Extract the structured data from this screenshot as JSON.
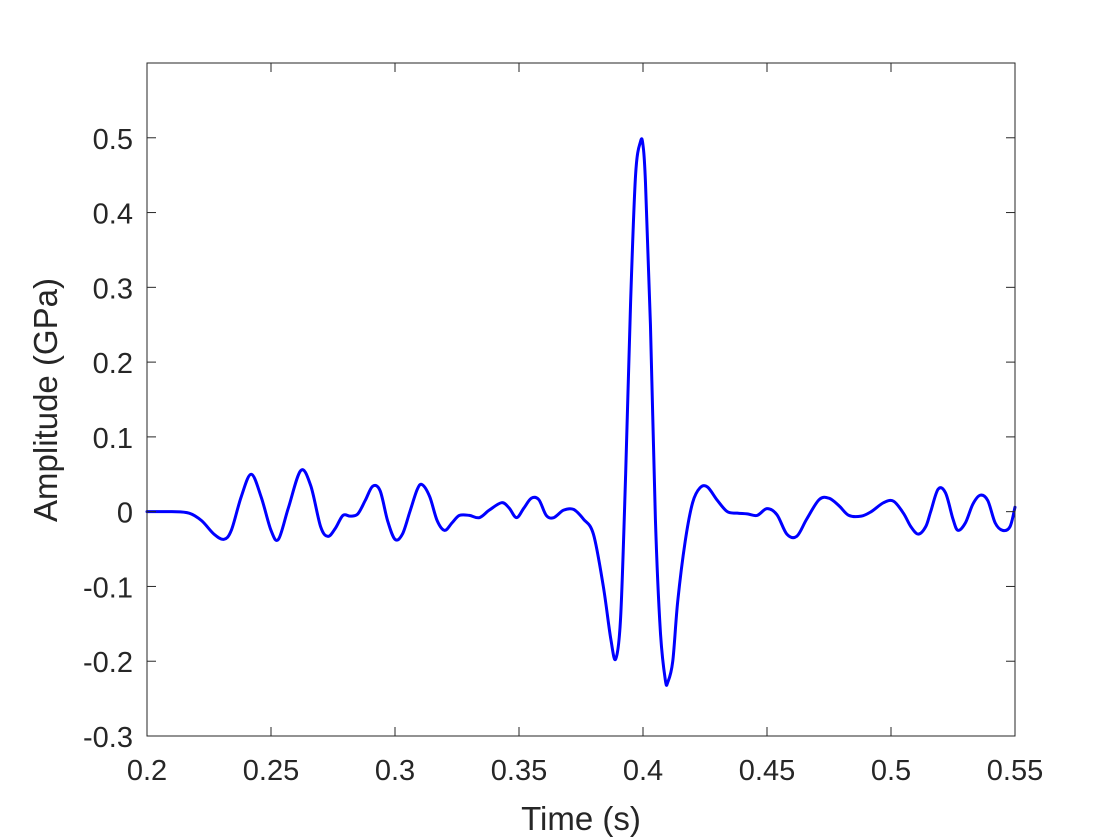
{
  "chart_data": {
    "type": "line",
    "title": "",
    "xlabel": "Time (s)",
    "ylabel": "Amplitude (GPa)",
    "xlim": [
      0.2,
      0.55
    ],
    "ylim": [
      -0.3,
      0.6
    ],
    "xticks": [
      0.2,
      0.25,
      0.3,
      0.35,
      0.4,
      0.45,
      0.5,
      0.55
    ],
    "xtick_labels": [
      "0.2",
      "0.25",
      "0.3",
      "0.35",
      "0.4",
      "0.45",
      "0.5",
      "0.55"
    ],
    "yticks": [
      -0.3,
      -0.2,
      -0.1,
      0,
      0.1,
      0.2,
      0.3,
      0.4,
      0.5
    ],
    "ytick_labels": [
      "-0.3",
      "-0.2",
      "-0.1",
      "0",
      "0.1",
      "0.2",
      "0.3",
      "0.4",
      "0.5"
    ],
    "grid": false,
    "box": true,
    "series": [
      {
        "color": "#0000ff",
        "x": [
          0.2,
          0.21,
          0.217,
          0.222,
          0.227,
          0.231,
          0.234,
          0.238,
          0.242,
          0.246,
          0.25,
          0.253,
          0.257,
          0.262,
          0.266,
          0.27,
          0.273,
          0.276,
          0.279,
          0.282,
          0.285,
          0.288,
          0.291,
          0.294,
          0.297,
          0.3,
          0.303,
          0.306,
          0.309,
          0.311,
          0.314,
          0.317,
          0.32,
          0.323,
          0.326,
          0.33,
          0.334,
          0.338,
          0.343,
          0.346,
          0.349,
          0.352,
          0.355,
          0.358,
          0.361,
          0.364,
          0.368,
          0.372,
          0.376,
          0.38,
          0.384,
          0.387,
          0.389,
          0.391,
          0.393,
          0.395,
          0.397,
          0.399,
          0.4,
          0.401,
          0.403,
          0.405,
          0.407,
          0.409,
          0.41,
          0.412,
          0.414,
          0.417,
          0.42,
          0.423,
          0.426,
          0.43,
          0.434,
          0.438,
          0.442,
          0.446,
          0.45,
          0.454,
          0.458,
          0.462,
          0.466,
          0.471,
          0.475,
          0.479,
          0.483,
          0.488,
          0.492,
          0.497,
          0.501,
          0.505,
          0.508,
          0.511,
          0.514,
          0.516,
          0.519,
          0.522,
          0.525,
          0.527,
          0.53,
          0.533,
          0.536,
          0.539,
          0.542,
          0.545,
          0.548,
          0.55
        ],
        "y": [
          0.0,
          0.0,
          -0.002,
          -0.012,
          -0.03,
          -0.037,
          -0.025,
          0.02,
          0.05,
          0.02,
          -0.025,
          -0.037,
          0.005,
          0.055,
          0.035,
          -0.02,
          -0.033,
          -0.022,
          -0.005,
          -0.006,
          -0.003,
          0.015,
          0.034,
          0.028,
          -0.012,
          -0.037,
          -0.03,
          0.0,
          0.03,
          0.036,
          0.02,
          -0.012,
          -0.025,
          -0.015,
          -0.005,
          -0.005,
          -0.008,
          0.002,
          0.012,
          0.005,
          -0.008,
          0.005,
          0.018,
          0.016,
          -0.005,
          -0.008,
          0.002,
          0.003,
          -0.01,
          -0.03,
          -0.1,
          -0.17,
          -0.197,
          -0.14,
          0.05,
          0.28,
          0.45,
          0.495,
          0.49,
          0.44,
          0.25,
          -0.01,
          -0.16,
          -0.225,
          -0.228,
          -0.2,
          -0.12,
          -0.04,
          0.012,
          0.032,
          0.033,
          0.015,
          0.0,
          -0.002,
          -0.003,
          -0.005,
          0.004,
          -0.004,
          -0.03,
          -0.033,
          -0.01,
          0.016,
          0.018,
          0.008,
          -0.005,
          -0.006,
          0.0,
          0.012,
          0.014,
          -0.002,
          -0.02,
          -0.03,
          -0.02,
          0.0,
          0.03,
          0.025,
          -0.01,
          -0.025,
          -0.015,
          0.01,
          0.022,
          0.015,
          -0.015,
          -0.025,
          -0.02,
          0.006
        ]
      }
    ]
  }
}
